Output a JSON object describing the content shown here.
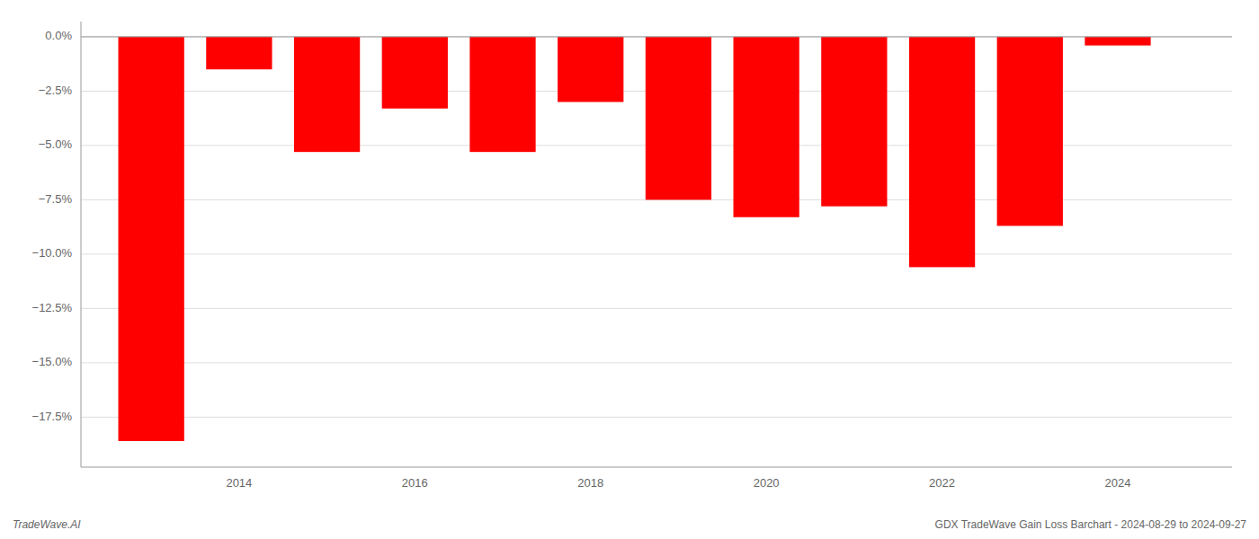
{
  "chart_data": {
    "type": "bar",
    "x": [
      2013,
      2014,
      2015,
      2016,
      2017,
      2018,
      2019,
      2020,
      2021,
      2022,
      2023,
      2024
    ],
    "values": [
      -18.6,
      -1.5,
      -5.3,
      -3.3,
      -5.3,
      -3.0,
      -7.5,
      -8.3,
      -7.8,
      -10.6,
      -8.7,
      -0.4
    ],
    "color": "#ff0000",
    "xlim": [
      2012.2,
      2025.3
    ],
    "xticks": [
      2014,
      2016,
      2018,
      2020,
      2022,
      2024
    ],
    "ylim": [
      -19.8,
      0.7
    ],
    "yticks": [
      {
        "value": 0.0,
        "label": "0.0%"
      },
      {
        "value": -2.5,
        "label": "−2.5%"
      },
      {
        "value": -5.0,
        "label": "−5.0%"
      },
      {
        "value": -7.5,
        "label": "−7.5%"
      },
      {
        "value": -10.0,
        "label": "−10.0%"
      },
      {
        "value": -12.5,
        "label": "−12.5%"
      },
      {
        "value": -15.0,
        "label": "−15.0%"
      },
      {
        "value": -17.5,
        "label": "−17.5%"
      }
    ],
    "grid": true,
    "annotations": [
      "TradeWave.AI",
      "GDX TradeWave Gain Loss Barchart - 2024-08-29 to 2024-09-27"
    ]
  }
}
